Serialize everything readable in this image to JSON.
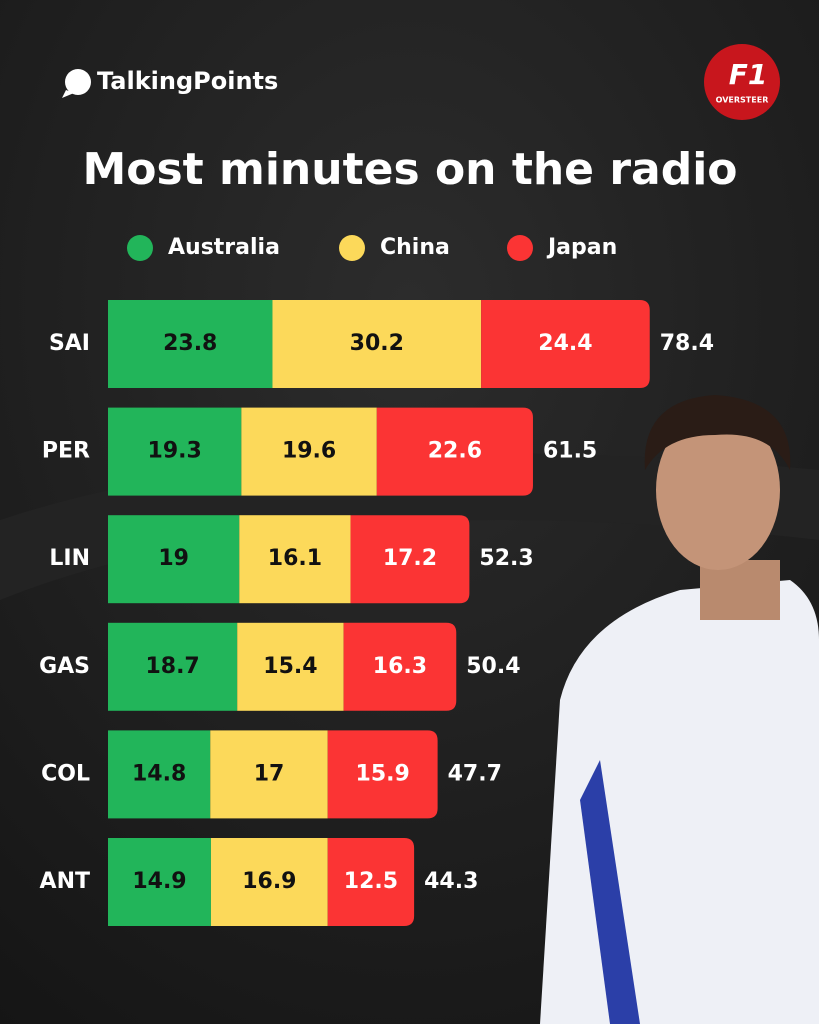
{
  "brand": "TalkingPoints",
  "badge": {
    "main": "F1",
    "sub": "OVERSTEER"
  },
  "chart_data": {
    "type": "stacked-bar-horizontal",
    "title": "Most minutes on the radio",
    "categories": [
      "SAI",
      "PER",
      "LIN",
      "GAS",
      "COL",
      "ANT"
    ],
    "series": [
      {
        "name": "Australia",
        "color": "#22b55a",
        "values": [
          23.8,
          19.3,
          19,
          18.7,
          14.8,
          14.9
        ]
      },
      {
        "name": "China",
        "color": "#fcd95a",
        "values": [
          30.2,
          19.6,
          16.1,
          15.4,
          17,
          16.9
        ]
      },
      {
        "name": "Japan",
        "color": "#fb3434",
        "values": [
          24.4,
          22.6,
          17.2,
          16.3,
          15.9,
          12.5
        ]
      }
    ],
    "totals": [
      78.4,
      61.5,
      52.3,
      50.4,
      47.7,
      44.3
    ],
    "xlim": [
      0,
      100
    ]
  }
}
